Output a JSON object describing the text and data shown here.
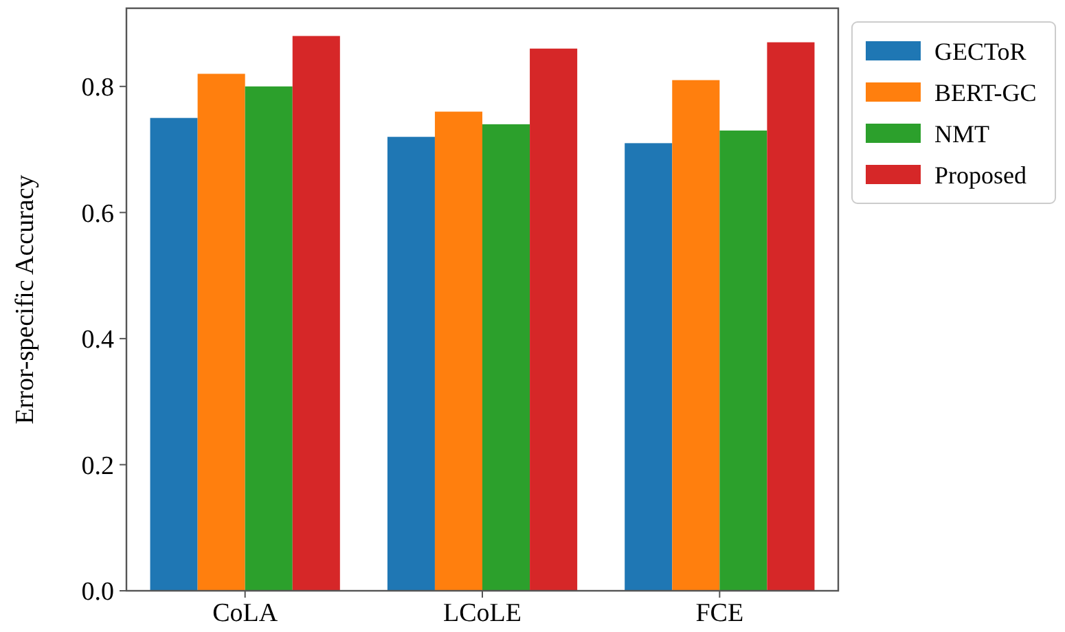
{
  "chart_data": {
    "type": "bar",
    "ylabel": "Error-specific Accuracy",
    "categories": [
      "CoLA",
      "LCoLE",
      "FCE"
    ],
    "series": [
      {
        "name": "GECToR",
        "color": "#1f77b4",
        "values": [
          0.75,
          0.72,
          0.71
        ]
      },
      {
        "name": "BERT-GC",
        "color": "#ff7f0e",
        "values": [
          0.82,
          0.76,
          0.81
        ]
      },
      {
        "name": "NMT",
        "color": "#2ca02c",
        "values": [
          0.8,
          0.74,
          0.73
        ]
      },
      {
        "name": "Proposed",
        "color": "#d62728",
        "values": [
          0.88,
          0.86,
          0.87
        ]
      }
    ],
    "ylim": [
      0,
      0.924
    ],
    "yticks": [
      {
        "value": 0,
        "label": "0.0"
      },
      {
        "value": 0.2,
        "label": "0.2"
      },
      {
        "value": 0.4,
        "label": "0.4"
      },
      {
        "value": 0.6,
        "label": "0.6"
      },
      {
        "value": 0.8,
        "label": "0.8"
      }
    ],
    "legend": "right",
    "grid": false
  }
}
